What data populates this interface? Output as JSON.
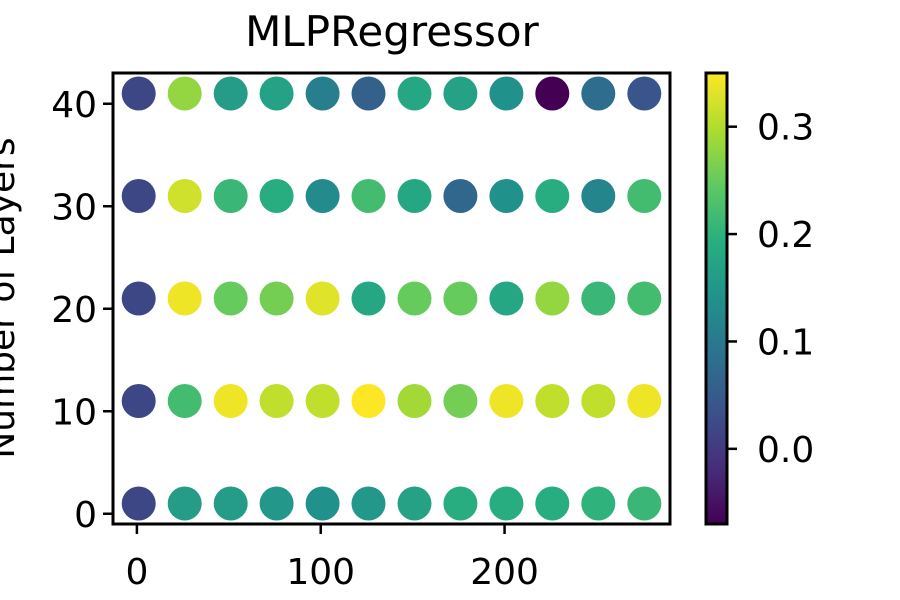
{
  "chart_data": {
    "type": "scatter",
    "title": "MLPRegressor",
    "xlabel": "",
    "ylabel": "Number of Layers",
    "x": [
      1,
      26,
      51,
      76,
      101,
      126,
      151,
      176,
      201,
      226,
      251,
      276
    ],
    "y": [
      1,
      11,
      21,
      31,
      41
    ],
    "values": [
      [
        0.02,
        0.16,
        0.16,
        0.15,
        0.14,
        0.15,
        0.17,
        0.19,
        0.19,
        0.19,
        0.2,
        0.21
      ],
      [
        0.02,
        0.22,
        0.34,
        0.31,
        0.31,
        0.35,
        0.29,
        0.26,
        0.34,
        0.31,
        0.31,
        0.34
      ],
      [
        0.02,
        0.34,
        0.25,
        0.26,
        0.33,
        0.18,
        0.25,
        0.25,
        0.18,
        0.28,
        0.21,
        0.22
      ],
      [
        0.02,
        0.32,
        0.21,
        0.19,
        0.13,
        0.22,
        0.18,
        0.07,
        0.14,
        0.19,
        0.12,
        0.22
      ],
      [
        0.02,
        0.28,
        0.16,
        0.17,
        0.11,
        0.06,
        0.18,
        0.17,
        0.14,
        -0.07,
        0.08,
        0.04
      ]
    ],
    "xlim": [
      -13,
      290
    ],
    "ylim": [
      -1,
      43
    ],
    "xticks": [
      0,
      100,
      200
    ],
    "xtick_labels": [
      "0",
      "100",
      "200"
    ],
    "yticks": [
      0,
      10,
      20,
      30,
      40
    ],
    "ytick_labels": [
      "0",
      "10",
      "20",
      "30",
      "40"
    ],
    "colorbar": {
      "colormap": "viridis",
      "range": [
        -0.07,
        0.35
      ],
      "ticks": [
        0.0,
        0.1,
        0.2,
        0.3
      ],
      "tick_labels": [
        "0.0",
        "0.1",
        "0.2",
        "0.3"
      ]
    },
    "grid": false,
    "legend": "none"
  }
}
